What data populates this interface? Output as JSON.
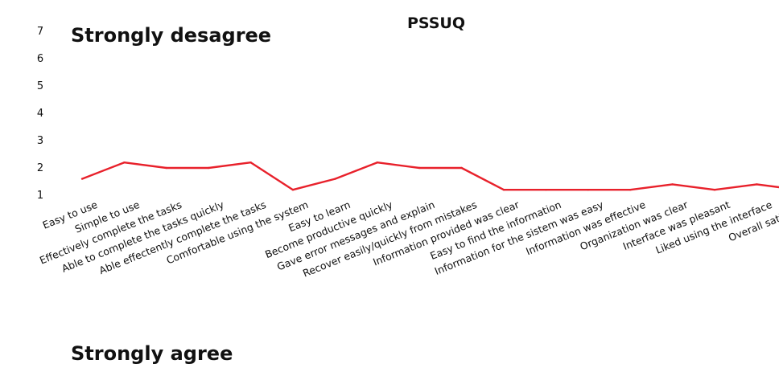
{
  "chart_data": {
    "type": "line",
    "title": "PSSUQ",
    "annotations": {
      "top": "Strongly desagree",
      "bottom": "Strongly agree"
    },
    "categories": [
      "Easy to use",
      "Simple to use",
      "Effectively complete the tasks",
      "Able to complete the tasks quickly",
      "Able effectently complete the tasks",
      "Comfortable using the system",
      "Easy to learn",
      "Become productive quickly",
      "Gave error messages and explain",
      "Recover easily/quickly from mistakes",
      "Information provided was clear",
      "Easy to find the information",
      "Information for the sistem was easy",
      "Information was effective",
      "Organization was clear",
      "Interface was pleasant",
      "Liked using the interface",
      "Overall satisfation"
    ],
    "values": [
      1.6,
      2.2,
      2.0,
      2.0,
      2.2,
      1.2,
      1.6,
      2.2,
      2.0,
      2.0,
      1.2,
      1.2,
      1.2,
      1.2,
      1.4,
      1.2,
      1.4,
      1.2
    ],
    "y_ticks": [
      "1",
      "2",
      "3",
      "4",
      "5",
      "6",
      "7"
    ],
    "ylim": [
      1,
      7
    ],
    "line_color": "#e8212b",
    "grid": false,
    "legend": "none"
  }
}
